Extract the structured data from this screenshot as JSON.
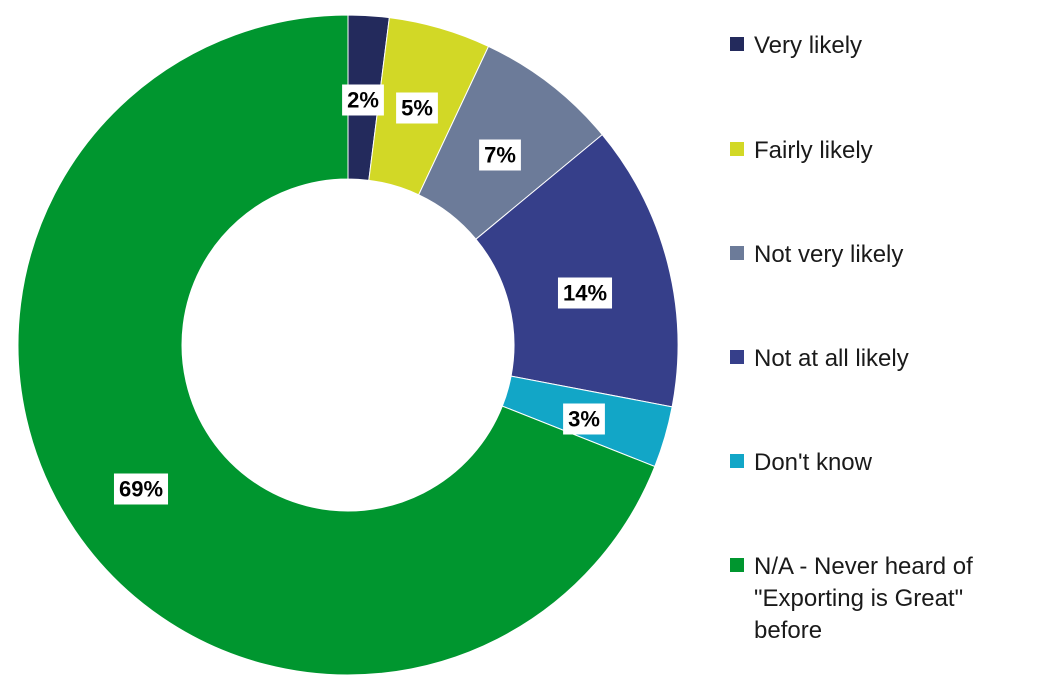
{
  "chart_data": {
    "type": "pie",
    "donut": true,
    "title": "",
    "legend_position": "right",
    "start_angle_deg": 0,
    "direction": "clockwise",
    "series": [
      {
        "categories": [
          "Very likely",
          "Fairly likely",
          "Not very likely",
          "Not at all likely",
          "Don't know",
          "N/A - Never heard of\n\"Exporting is Great\"\nbefore"
        ],
        "values": [
          2,
          5,
          7,
          14,
          3,
          69
        ],
        "labels": [
          "2%",
          "5%",
          "7%",
          "14%",
          "3%",
          "69%"
        ],
        "colors": [
          "#232a5c",
          "#d2d826",
          "#6c7b99",
          "#363f8a",
          "#12a6c7",
          "#00962f"
        ]
      }
    ]
  }
}
